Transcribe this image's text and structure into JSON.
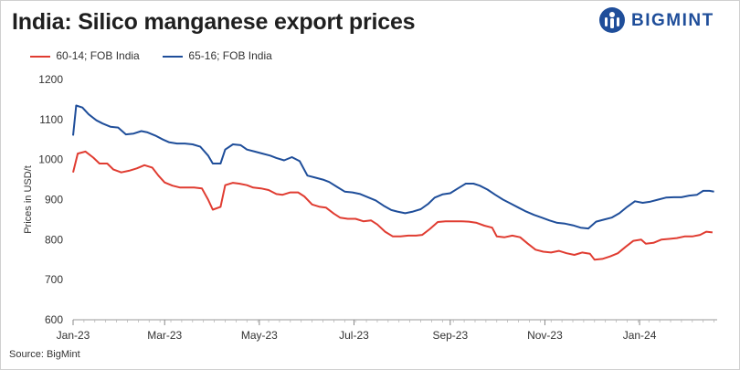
{
  "title": "India: Silico manganese export prices",
  "brand": {
    "name": "BIGMINT",
    "logo_icon": "bigmint-logo-icon",
    "color": "#1f4e9a"
  },
  "source": "Source: BigMint",
  "chart_data": {
    "type": "line",
    "title": "India: Silico manganese export prices",
    "ylabel": "Prices in USD/t",
    "xlabel": "",
    "ylim": [
      600,
      1200
    ],
    "yticks": [
      600,
      700,
      800,
      900,
      1000,
      1100,
      1200
    ],
    "xlim": [
      "2023-01-01",
      "2024-02-20"
    ],
    "xticks": [
      {
        "date": "2023-01-01",
        "label": "Jan-23"
      },
      {
        "date": "2023-03-01",
        "label": "Mar-23"
      },
      {
        "date": "2023-05-01",
        "label": "May-23"
      },
      {
        "date": "2023-07-01",
        "label": "Jul-23"
      },
      {
        "date": "2023-09-01",
        "label": "Sep-23"
      },
      {
        "date": "2023-11-01",
        "label": "Nov-23"
      },
      {
        "date": "2024-01-01",
        "label": "Jan-24"
      }
    ],
    "grid": false,
    "legend": "top-left",
    "series": [
      {
        "name": "60-14; FOB India",
        "color": "#e03c31",
        "points": [
          [
            "2023-01-01",
            968
          ],
          [
            "2023-01-04",
            1015
          ],
          [
            "2023-01-09",
            1020
          ],
          [
            "2023-01-14",
            1005
          ],
          [
            "2023-01-18",
            990
          ],
          [
            "2023-01-23",
            990
          ],
          [
            "2023-01-27",
            975
          ],
          [
            "2023-02-01",
            968
          ],
          [
            "2023-02-06",
            972
          ],
          [
            "2023-02-11",
            978
          ],
          [
            "2023-02-16",
            986
          ],
          [
            "2023-02-21",
            980
          ],
          [
            "2023-02-25",
            960
          ],
          [
            "2023-03-01",
            943
          ],
          [
            "2023-03-06",
            935
          ],
          [
            "2023-03-11",
            930
          ],
          [
            "2023-03-15",
            930
          ],
          [
            "2023-03-20",
            930
          ],
          [
            "2023-03-25",
            928
          ],
          [
            "2023-03-29",
            900
          ],
          [
            "2023-04-01",
            875
          ],
          [
            "2023-04-06",
            882
          ],
          [
            "2023-04-09",
            936
          ],
          [
            "2023-04-14",
            942
          ],
          [
            "2023-04-18",
            940
          ],
          [
            "2023-04-23",
            936
          ],
          [
            "2023-04-27",
            930
          ],
          [
            "2023-05-02",
            928
          ],
          [
            "2023-05-07",
            924
          ],
          [
            "2023-05-12",
            914
          ],
          [
            "2023-05-16",
            912
          ],
          [
            "2023-05-21",
            918
          ],
          [
            "2023-05-26",
            918
          ],
          [
            "2023-05-30",
            908
          ],
          [
            "2023-06-04",
            888
          ],
          [
            "2023-06-09",
            882
          ],
          [
            "2023-06-13",
            880
          ],
          [
            "2023-06-18",
            865
          ],
          [
            "2023-06-22",
            855
          ],
          [
            "2023-06-27",
            852
          ],
          [
            "2023-07-02",
            852
          ],
          [
            "2023-07-07",
            846
          ],
          [
            "2023-07-12",
            848
          ],
          [
            "2023-07-16",
            838
          ],
          [
            "2023-07-21",
            820
          ],
          [
            "2023-07-26",
            808
          ],
          [
            "2023-07-31",
            808
          ],
          [
            "2023-08-05",
            810
          ],
          [
            "2023-08-10",
            810
          ],
          [
            "2023-08-14",
            812
          ],
          [
            "2023-08-19",
            827
          ],
          [
            "2023-08-24",
            844
          ],
          [
            "2023-08-29",
            846
          ],
          [
            "2023-09-03",
            846
          ],
          [
            "2023-09-08",
            846
          ],
          [
            "2023-09-13",
            845
          ],
          [
            "2023-09-18",
            842
          ],
          [
            "2023-09-23",
            835
          ],
          [
            "2023-09-28",
            830
          ],
          [
            "2023-10-01",
            808
          ],
          [
            "2023-10-06",
            806
          ],
          [
            "2023-10-11",
            810
          ],
          [
            "2023-10-16",
            806
          ],
          [
            "2023-10-21",
            790
          ],
          [
            "2023-10-26",
            775
          ],
          [
            "2023-10-31",
            770
          ],
          [
            "2023-11-05",
            768
          ],
          [
            "2023-11-10",
            772
          ],
          [
            "2023-11-15",
            766
          ],
          [
            "2023-11-20",
            762
          ],
          [
            "2023-11-25",
            768
          ],
          [
            "2023-11-30",
            765
          ],
          [
            "2023-12-03",
            750
          ],
          [
            "2023-12-08",
            752
          ],
          [
            "2023-12-13",
            758
          ],
          [
            "2023-12-18",
            766
          ],
          [
            "2023-12-23",
            782
          ],
          [
            "2023-12-28",
            797
          ],
          [
            "2024-01-02",
            800
          ],
          [
            "2024-01-05",
            790
          ],
          [
            "2024-01-10",
            792
          ],
          [
            "2024-01-15",
            800
          ],
          [
            "2024-01-20",
            802
          ],
          [
            "2024-01-25",
            804
          ],
          [
            "2024-01-30",
            808
          ],
          [
            "2024-02-04",
            808
          ],
          [
            "2024-02-09",
            812
          ],
          [
            "2024-02-13",
            820
          ],
          [
            "2024-02-17",
            818
          ]
        ]
      },
      {
        "name": "65-16; FOB India",
        "color": "#1f4e9a",
        "points": [
          [
            "2023-01-01",
            1060
          ],
          [
            "2023-01-03",
            1135
          ],
          [
            "2023-01-07",
            1130
          ],
          [
            "2023-01-11",
            1113
          ],
          [
            "2023-01-16",
            1098
          ],
          [
            "2023-01-20",
            1090
          ],
          [
            "2023-01-25",
            1082
          ],
          [
            "2023-01-30",
            1080
          ],
          [
            "2023-02-04",
            1063
          ],
          [
            "2023-02-09",
            1065
          ],
          [
            "2023-02-14",
            1071
          ],
          [
            "2023-02-18",
            1068
          ],
          [
            "2023-02-23",
            1060
          ],
          [
            "2023-02-28",
            1050
          ],
          [
            "2023-03-04",
            1043
          ],
          [
            "2023-03-09",
            1040
          ],
          [
            "2023-03-14",
            1040
          ],
          [
            "2023-03-19",
            1038
          ],
          [
            "2023-03-24",
            1032
          ],
          [
            "2023-03-29",
            1010
          ],
          [
            "2023-04-01",
            990
          ],
          [
            "2023-04-06",
            990
          ],
          [
            "2023-04-09",
            1025
          ],
          [
            "2023-04-14",
            1038
          ],
          [
            "2023-04-19",
            1036
          ],
          [
            "2023-04-23",
            1025
          ],
          [
            "2023-04-28",
            1020
          ],
          [
            "2023-05-03",
            1015
          ],
          [
            "2023-05-08",
            1010
          ],
          [
            "2023-05-12",
            1004
          ],
          [
            "2023-05-17",
            998
          ],
          [
            "2023-05-22",
            1006
          ],
          [
            "2023-05-27",
            996
          ],
          [
            "2023-06-01",
            960
          ],
          [
            "2023-06-06",
            955
          ],
          [
            "2023-06-11",
            950
          ],
          [
            "2023-06-15",
            944
          ],
          [
            "2023-06-20",
            932
          ],
          [
            "2023-06-25",
            920
          ],
          [
            "2023-06-30",
            918
          ],
          [
            "2023-07-05",
            914
          ],
          [
            "2023-07-10",
            906
          ],
          [
            "2023-07-15",
            898
          ],
          [
            "2023-07-20",
            885
          ],
          [
            "2023-07-25",
            874
          ],
          [
            "2023-07-29",
            870
          ],
          [
            "2023-08-03",
            866
          ],
          [
            "2023-08-08",
            870
          ],
          [
            "2023-08-13",
            876
          ],
          [
            "2023-08-18",
            890
          ],
          [
            "2023-08-22",
            905
          ],
          [
            "2023-08-27",
            913
          ],
          [
            "2023-09-01",
            916
          ],
          [
            "2023-09-06",
            928
          ],
          [
            "2023-09-11",
            940
          ],
          [
            "2023-09-16",
            940
          ],
          [
            "2023-09-20",
            935
          ],
          [
            "2023-09-25",
            925
          ],
          [
            "2023-09-30",
            912
          ],
          [
            "2023-10-05",
            900
          ],
          [
            "2023-10-10",
            890
          ],
          [
            "2023-10-15",
            880
          ],
          [
            "2023-10-20",
            870
          ],
          [
            "2023-10-25",
            862
          ],
          [
            "2023-10-30",
            855
          ],
          [
            "2023-11-04",
            848
          ],
          [
            "2023-11-09",
            842
          ],
          [
            "2023-11-14",
            840
          ],
          [
            "2023-11-19",
            836
          ],
          [
            "2023-11-24",
            830
          ],
          [
            "2023-11-29",
            828
          ],
          [
            "2023-12-04",
            845
          ],
          [
            "2023-12-09",
            850
          ],
          [
            "2023-12-14",
            855
          ],
          [
            "2023-12-19",
            866
          ],
          [
            "2023-12-24",
            882
          ],
          [
            "2023-12-29",
            896
          ],
          [
            "2024-01-03",
            892
          ],
          [
            "2024-01-08",
            895
          ],
          [
            "2024-01-13",
            900
          ],
          [
            "2024-01-18",
            905
          ],
          [
            "2024-01-23",
            906
          ],
          [
            "2024-01-28",
            906
          ],
          [
            "2024-02-02",
            910
          ],
          [
            "2024-02-07",
            912
          ],
          [
            "2024-02-11",
            922
          ],
          [
            "2024-02-15",
            922
          ],
          [
            "2024-02-18",
            920
          ]
        ]
      }
    ]
  }
}
